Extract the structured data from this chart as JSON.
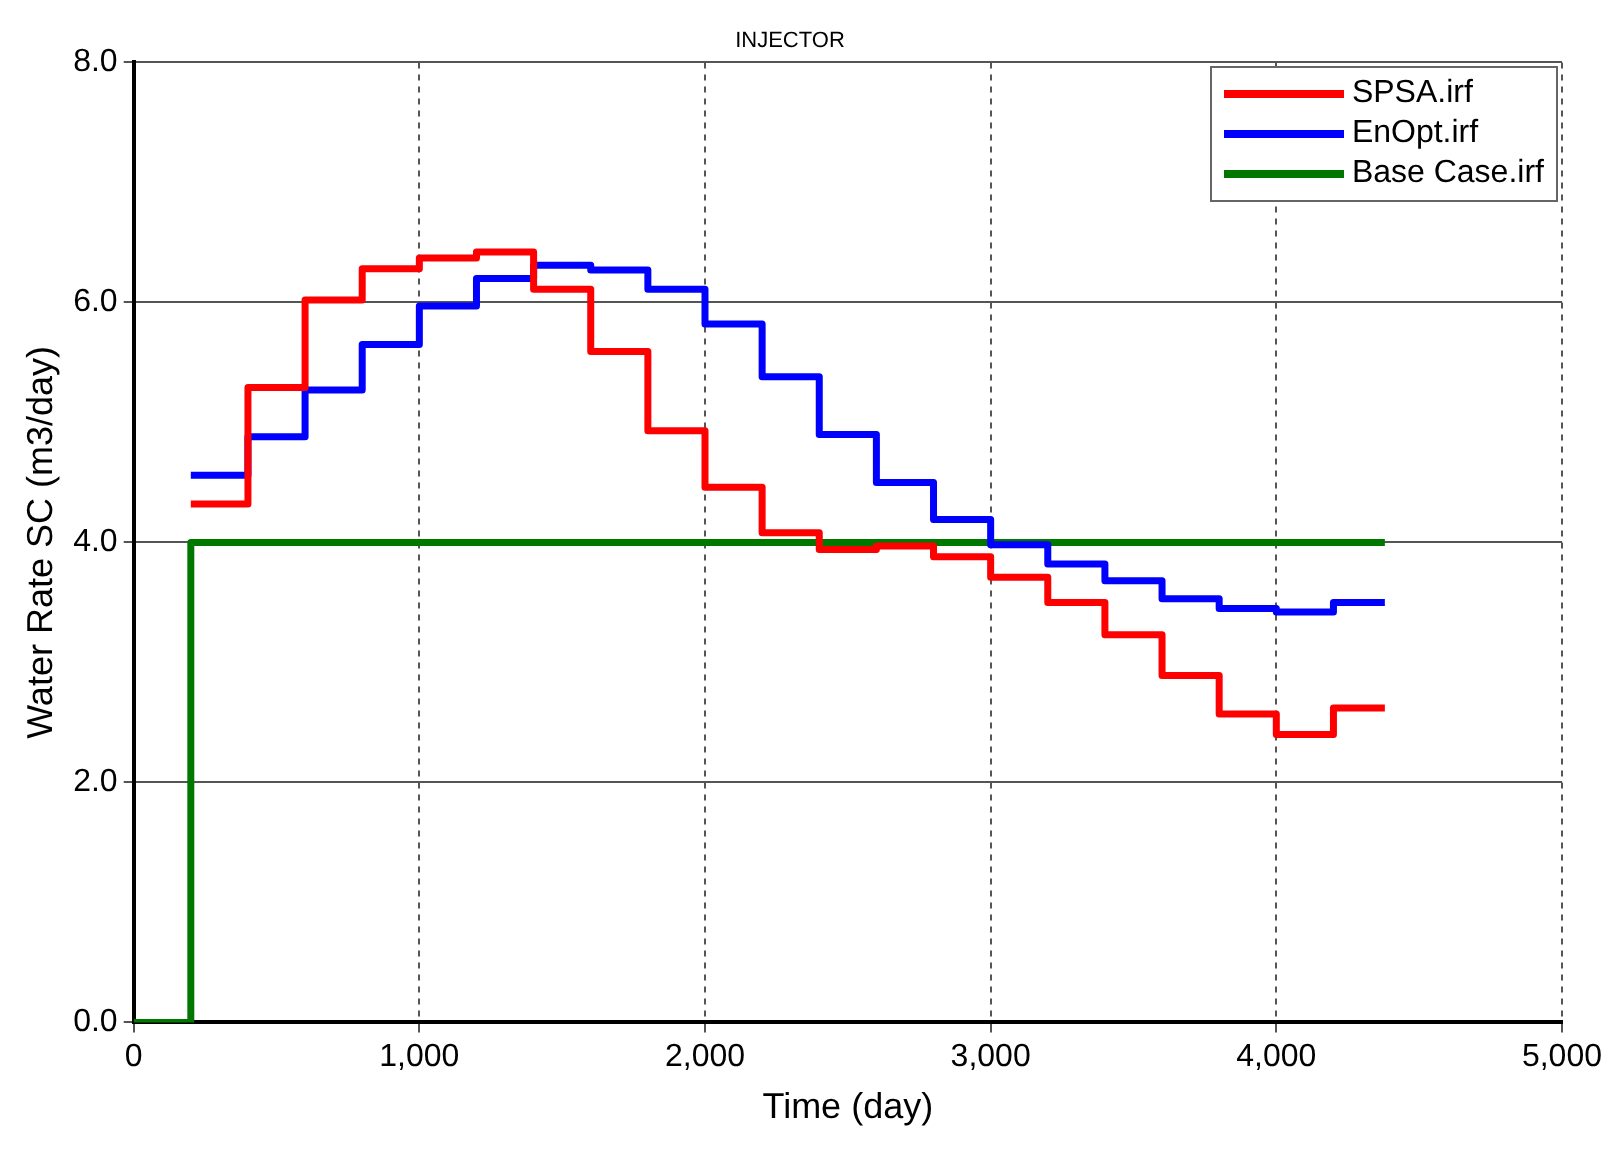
{
  "chart_data": {
    "type": "step",
    "title": "INJECTOR",
    "xlabel": "Time (day)",
    "ylabel": "Water Rate SC (m3/day)",
    "xlim": [
      0,
      5000
    ],
    "ylim": [
      0,
      8
    ],
    "xticks": [
      0,
      {
        "value": 1000,
        "label": "1,000"
      },
      {
        "value": 2000,
        "label": "2,000"
      },
      {
        "value": 3000,
        "label": "3,000"
      },
      {
        "value": 4000,
        "label": "4,000"
      },
      {
        "value": 5000,
        "label": "5,000"
      }
    ],
    "yticks": [
      {
        "value": 0,
        "label": "0.0"
      },
      {
        "value": 2,
        "label": "2.0"
      },
      {
        "value": 4,
        "label": "4.0"
      },
      {
        "value": 6,
        "label": "6.0"
      },
      {
        "value": 8,
        "label": "8.0"
      }
    ],
    "grid": true,
    "legend": "top right",
    "line_style": "solid",
    "marker": "none",
    "series": [
      {
        "name": "SPSA.irf",
        "color": "#ff0000",
        "x": [
          200,
          400,
          600,
          800,
          1000,
          1200,
          1400,
          1600,
          1800,
          2000,
          2200,
          2400,
          2600,
          2800,
          3000,
          3200,
          3400,
          3600,
          3800,
          4000,
          4200,
          4380
        ],
        "values": [
          4.32,
          5.29,
          6.02,
          6.28,
          6.37,
          6.42,
          6.11,
          5.59,
          4.93,
          4.46,
          4.08,
          3.94,
          3.97,
          3.88,
          3.71,
          3.5,
          3.23,
          2.89,
          2.57,
          2.4,
          2.62,
          2.62
        ]
      },
      {
        "name": "EnOpt.irf",
        "color": "#0000ff",
        "x": [
          200,
          400,
          600,
          800,
          1000,
          1200,
          1400,
          1600,
          1800,
          2000,
          2200,
          2400,
          2600,
          2800,
          3000,
          3200,
          3400,
          3600,
          3800,
          4000,
          4200,
          4380
        ],
        "values": [
          4.56,
          4.88,
          5.27,
          5.65,
          5.97,
          6.2,
          6.31,
          6.27,
          6.11,
          5.82,
          5.38,
          4.9,
          4.5,
          4.19,
          3.98,
          3.82,
          3.68,
          3.53,
          3.45,
          3.42,
          3.5,
          3.5
        ]
      },
      {
        "name": "Base Case.irf",
        "color": "#007800",
        "x": [
          0,
          200,
          4380
        ],
        "values": [
          0,
          4,
          4
        ]
      }
    ]
  }
}
